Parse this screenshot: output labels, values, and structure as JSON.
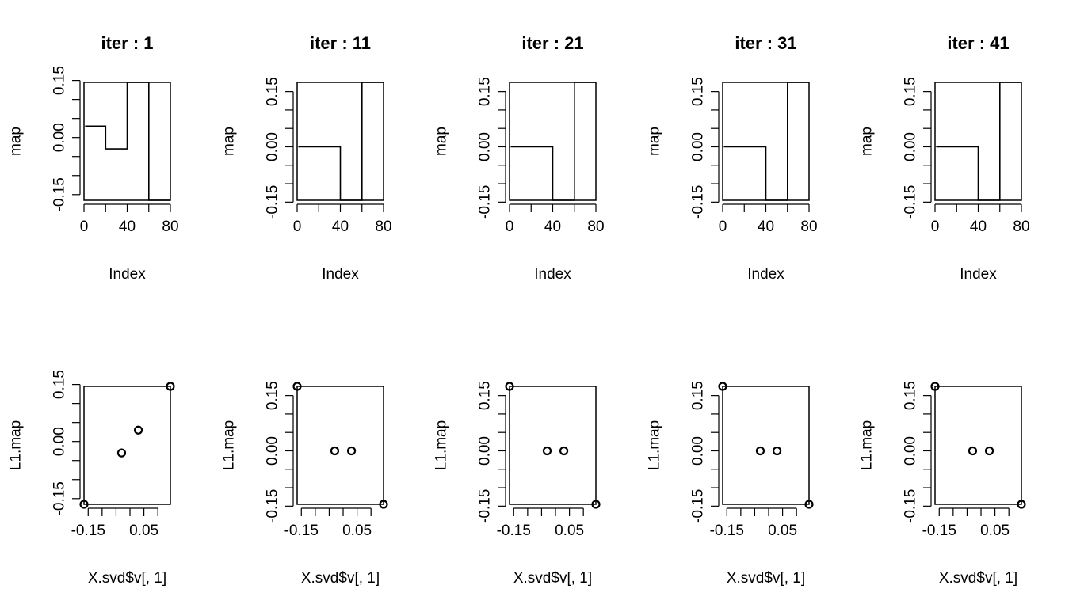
{
  "figure": {
    "rows": [
      {
        "panels": [
          {
            "title": "iter : 1"
          },
          {
            "title": "iter : 11"
          },
          {
            "title": "iter : 21"
          },
          {
            "title": "iter : 31"
          },
          {
            "title": "iter : 41"
          }
        ]
      },
      {
        "panels": [
          {
            "title": ""
          },
          {
            "title": ""
          },
          {
            "title": ""
          },
          {
            "title": ""
          },
          {
            "title": ""
          }
        ]
      }
    ]
  },
  "chart_data": [
    {
      "type": "line",
      "title": "iter : 1",
      "xlabel": "Index",
      "ylabel": "map",
      "xlim": [
        0,
        80
      ],
      "ylim": [
        -0.165,
        0.145
      ],
      "x_ticks": [
        0,
        20,
        40,
        60,
        80
      ],
      "x_tick_labels": [
        "0",
        "",
        "40",
        "",
        "80"
      ],
      "y_ticks": [
        -0.15,
        -0.1,
        -0.05,
        0.0,
        0.05,
        0.1,
        0.15
      ],
      "y_tick_labels": [
        "-0.15",
        "",
        "",
        "0.00",
        "",
        "",
        "0.15"
      ],
      "segments": [
        [
          1,
          20,
          0.03
        ],
        [
          20,
          40,
          -0.03
        ],
        [
          40,
          60,
          0.145
        ],
        [
          60,
          80,
          -0.165
        ]
      ]
    },
    {
      "type": "line",
      "title": "iter : 11",
      "xlabel": "Index",
      "ylabel": "map",
      "xlim": [
        0,
        80
      ],
      "ylim": [
        -0.145,
        0.175
      ],
      "x_ticks": [
        0,
        20,
        40,
        60,
        80
      ],
      "x_tick_labels": [
        "0",
        "",
        "40",
        "",
        "80"
      ],
      "y_ticks": [
        -0.15,
        -0.1,
        -0.05,
        0.0,
        0.05,
        0.1,
        0.15
      ],
      "y_tick_labels": [
        "-0.15",
        "",
        "",
        "0.00",
        "",
        "",
        "0.15"
      ],
      "segments": [
        [
          1,
          20,
          0.0
        ],
        [
          20,
          40,
          0.0
        ],
        [
          40,
          60,
          -0.145
        ],
        [
          60,
          80,
          0.175
        ]
      ]
    },
    {
      "type": "line",
      "title": "iter : 21",
      "xlabel": "Index",
      "ylabel": "map",
      "xlim": [
        0,
        80
      ],
      "ylim": [
        -0.145,
        0.175
      ],
      "x_ticks": [
        0,
        20,
        40,
        60,
        80
      ],
      "x_tick_labels": [
        "0",
        "",
        "40",
        "",
        "80"
      ],
      "y_ticks": [
        -0.15,
        -0.1,
        -0.05,
        0.0,
        0.05,
        0.1,
        0.15
      ],
      "y_tick_labels": [
        "-0.15",
        "",
        "",
        "0.00",
        "",
        "",
        "0.15"
      ],
      "segments": [
        [
          1,
          20,
          0.0
        ],
        [
          20,
          40,
          0.0
        ],
        [
          40,
          60,
          -0.145
        ],
        [
          60,
          80,
          0.175
        ]
      ]
    },
    {
      "type": "line",
      "title": "iter : 31",
      "xlabel": "Index",
      "ylabel": "map",
      "xlim": [
        0,
        80
      ],
      "ylim": [
        -0.145,
        0.175
      ],
      "x_ticks": [
        0,
        20,
        40,
        60,
        80
      ],
      "x_tick_labels": [
        "0",
        "",
        "40",
        "",
        "80"
      ],
      "y_ticks": [
        -0.15,
        -0.1,
        -0.05,
        0.0,
        0.05,
        0.1,
        0.15
      ],
      "y_tick_labels": [
        "-0.15",
        "",
        "",
        "0.00",
        "",
        "",
        "0.15"
      ],
      "segments": [
        [
          1,
          20,
          0.0
        ],
        [
          20,
          40,
          0.0
        ],
        [
          40,
          60,
          -0.145
        ],
        [
          60,
          80,
          0.175
        ]
      ]
    },
    {
      "type": "line",
      "title": "iter : 41",
      "xlabel": "Index",
      "ylabel": "map",
      "xlim": [
        0,
        80
      ],
      "ylim": [
        -0.145,
        0.175
      ],
      "x_ticks": [
        0,
        20,
        40,
        60,
        80
      ],
      "x_tick_labels": [
        "0",
        "",
        "40",
        "",
        "80"
      ],
      "y_ticks": [
        -0.15,
        -0.1,
        -0.05,
        0.0,
        0.05,
        0.1,
        0.15
      ],
      "y_tick_labels": [
        "-0.15",
        "",
        "",
        "0.00",
        "",
        "",
        "0.15"
      ],
      "segments": [
        [
          1,
          20,
          0.0
        ],
        [
          20,
          40,
          0.0
        ],
        [
          40,
          60,
          -0.145
        ],
        [
          60,
          80,
          0.175
        ]
      ]
    },
    {
      "type": "scatter",
      "title": "",
      "xlabel": "X.svd$v[, 1]",
      "ylabel": "L1.map",
      "xlim": [
        -0.165,
        0.145
      ],
      "ylim": [
        -0.165,
        0.145
      ],
      "x_ticks": [
        -0.15,
        -0.1,
        -0.05,
        0.0,
        0.05,
        0.1
      ],
      "x_tick_labels": [
        "-0.15",
        "",
        "",
        "",
        "0.05",
        ""
      ],
      "y_ticks": [
        -0.15,
        -0.1,
        -0.05,
        0.0,
        0.05,
        0.1,
        0.15
      ],
      "y_tick_labels": [
        "-0.15",
        "",
        "",
        "0.00",
        "",
        "",
        "0.15"
      ],
      "points": [
        [
          -0.165,
          -0.165
        ],
        [
          -0.03,
          -0.03
        ],
        [
          0.03,
          0.03
        ],
        [
          0.145,
          0.145
        ]
      ]
    },
    {
      "type": "scatter",
      "title": "",
      "xlabel": "X.svd$v[, 1]",
      "ylabel": "L1.map",
      "xlim": [
        -0.165,
        0.145
      ],
      "ylim": [
        -0.145,
        0.175
      ],
      "x_ticks": [
        -0.15,
        -0.1,
        -0.05,
        0.0,
        0.05,
        0.1
      ],
      "x_tick_labels": [
        "-0.15",
        "",
        "",
        "",
        "0.05",
        ""
      ],
      "y_ticks": [
        -0.15,
        -0.1,
        -0.05,
        0.0,
        0.05,
        0.1,
        0.15
      ],
      "y_tick_labels": [
        "-0.15",
        "",
        "",
        "0.00",
        "",
        "",
        "0.15"
      ],
      "points": [
        [
          -0.165,
          0.175
        ],
        [
          -0.03,
          0.0
        ],
        [
          0.03,
          0.0
        ],
        [
          0.145,
          -0.145
        ]
      ]
    },
    {
      "type": "scatter",
      "title": "",
      "xlabel": "X.svd$v[, 1]",
      "ylabel": "L1.map",
      "xlim": [
        -0.165,
        0.145
      ],
      "ylim": [
        -0.145,
        0.175
      ],
      "x_ticks": [
        -0.15,
        -0.1,
        -0.05,
        0.0,
        0.05,
        0.1
      ],
      "x_tick_labels": [
        "-0.15",
        "",
        "",
        "",
        "0.05",
        ""
      ],
      "y_ticks": [
        -0.15,
        -0.1,
        -0.05,
        0.0,
        0.05,
        0.1,
        0.15
      ],
      "y_tick_labels": [
        "-0.15",
        "",
        "",
        "0.00",
        "",
        "",
        "0.15"
      ],
      "points": [
        [
          -0.165,
          0.175
        ],
        [
          -0.03,
          0.0
        ],
        [
          0.03,
          0.0
        ],
        [
          0.145,
          -0.145
        ]
      ]
    },
    {
      "type": "scatter",
      "title": "",
      "xlabel": "X.svd$v[, 1]",
      "ylabel": "L1.map",
      "xlim": [
        -0.165,
        0.145
      ],
      "ylim": [
        -0.145,
        0.175
      ],
      "x_ticks": [
        -0.15,
        -0.1,
        -0.05,
        0.0,
        0.05,
        0.1
      ],
      "x_tick_labels": [
        "-0.15",
        "",
        "",
        "",
        "0.05",
        ""
      ],
      "y_ticks": [
        -0.15,
        -0.1,
        -0.05,
        0.0,
        0.05,
        0.1,
        0.15
      ],
      "y_tick_labels": [
        "-0.15",
        "",
        "",
        "0.00",
        "",
        "",
        "0.15"
      ],
      "points": [
        [
          -0.165,
          0.175
        ],
        [
          -0.03,
          0.0
        ],
        [
          0.03,
          0.0
        ],
        [
          0.145,
          -0.145
        ]
      ]
    },
    {
      "type": "scatter",
      "title": "",
      "xlabel": "X.svd$v[, 1]",
      "ylabel": "L1.map",
      "xlim": [
        -0.165,
        0.145
      ],
      "ylim": [
        -0.145,
        0.175
      ],
      "x_ticks": [
        -0.15,
        -0.1,
        -0.05,
        0.0,
        0.05,
        0.1
      ],
      "x_tick_labels": [
        "-0.15",
        "",
        "",
        "",
        "0.05",
        ""
      ],
      "y_ticks": [
        -0.15,
        -0.1,
        -0.05,
        0.0,
        0.05,
        0.1,
        0.15
      ],
      "y_tick_labels": [
        "-0.15",
        "",
        "",
        "0.00",
        "",
        "",
        "0.15"
      ],
      "points": [
        [
          -0.165,
          0.175
        ],
        [
          -0.03,
          0.0
        ],
        [
          0.03,
          0.0
        ],
        [
          0.145,
          -0.145
        ]
      ]
    }
  ]
}
